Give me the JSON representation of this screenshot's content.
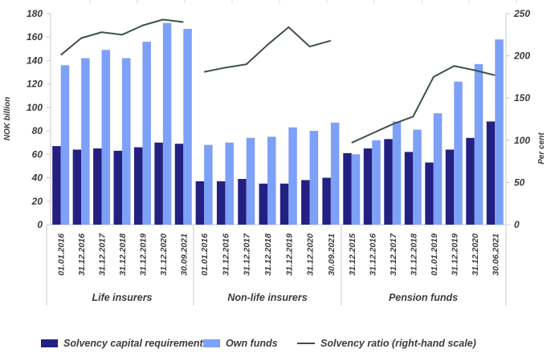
{
  "chart_data": {
    "type": "bar+line",
    "left_axis": {
      "label": "NOK billion",
      "min": 0,
      "max": 180,
      "ticks": [
        0,
        20,
        40,
        60,
        80,
        100,
        120,
        140,
        160,
        180
      ]
    },
    "right_axis": {
      "label": "Per cent",
      "min": 0,
      "max": 250,
      "ticks": [
        0,
        50,
        100,
        150,
        200,
        250
      ]
    },
    "colors": {
      "scr": "#232082",
      "own": "#7da0f8",
      "ratio": "#3d5149",
      "axis": "#c9c9c9"
    },
    "series": [
      {
        "key": "scr",
        "name": "Solvency capital requirement",
        "type": "bar",
        "axis": "left"
      },
      {
        "key": "own",
        "name": "Own funds",
        "type": "bar",
        "axis": "left"
      },
      {
        "key": "ratio",
        "name": "Solvency ratio (right-hand scale)",
        "type": "line",
        "axis": "right"
      }
    ],
    "sections": [
      {
        "label": "Life insurers",
        "dates": [
          "01.01.2016",
          "31.12.2016",
          "31.12.2017",
          "31.12.2018",
          "31.12.2019",
          "31.12.2020",
          "30.09.2021"
        ],
        "scr": [
          67,
          64,
          65,
          63,
          66,
          70,
          69
        ],
        "own": [
          136,
          142,
          149,
          142,
          156,
          172,
          167
        ],
        "ratio": [
          201,
          221,
          228,
          225,
          236,
          243,
          240
        ]
      },
      {
        "label": "Non-life insurers",
        "dates": [
          "01.01.2016",
          "31.12.2016",
          "31.12.2017",
          "31.12.2018",
          "31.12.2019",
          "31.12.2020",
          "30.09.2021"
        ],
        "scr": [
          37,
          37,
          39,
          35,
          35,
          38,
          40
        ],
        "own": [
          68,
          70,
          74,
          75,
          83,
          80,
          87
        ],
        "ratio": [
          181,
          186,
          190,
          213,
          234,
          211,
          218
        ]
      },
      {
        "label": "Pension funds",
        "dates": [
          "31.12.2015",
          "31.12.2016",
          "31.12.2017",
          "31.12.2018",
          "01.01.2019",
          "31.12.2019",
          "31.12.2020",
          "30.06.2021"
        ],
        "scr": [
          61,
          65,
          73,
          62,
          53,
          64,
          74,
          88
        ],
        "own": [
          60,
          72,
          88,
          81,
          95,
          122,
          137,
          158
        ],
        "ratio": [
          97,
          108,
          119,
          128,
          175,
          188,
          183,
          177
        ]
      }
    ]
  },
  "legend": {
    "items": [
      {
        "label": "Solvency capital requirement"
      },
      {
        "label": "Own funds"
      },
      {
        "label": "Solvency ratio (right-hand scale)"
      }
    ]
  }
}
